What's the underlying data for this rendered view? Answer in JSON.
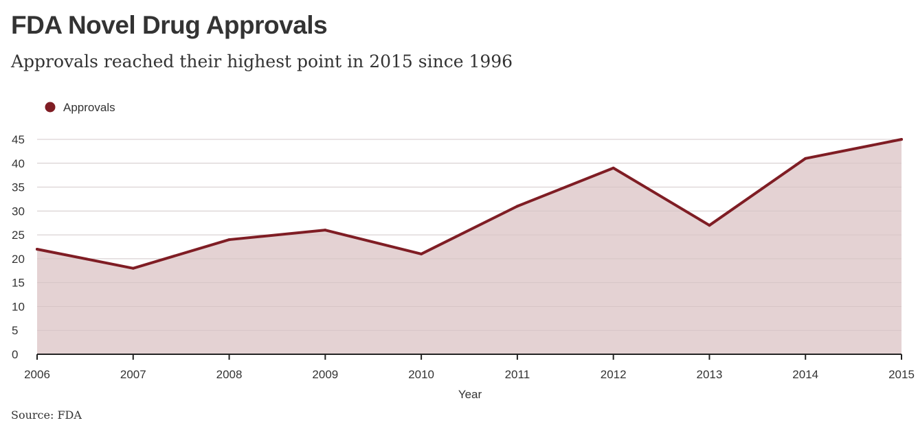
{
  "title": "FDA Novel Drug Approvals",
  "subtitle": "Approvals reached their highest point in 2015 since 1996",
  "source": "Source: FDA",
  "colors": {
    "line": "#7f1d24",
    "area": "#e4d2d3",
    "grid": "#dddddd",
    "axis": "#222222"
  },
  "chart_data": {
    "type": "area",
    "title": "FDA Novel Drug Approvals",
    "xlabel": "Year",
    "ylabel": "",
    "x": [
      "2006",
      "2007",
      "2008",
      "2009",
      "2010",
      "2011",
      "2012",
      "2013",
      "2014",
      "2015"
    ],
    "series": [
      {
        "name": "Approvals",
        "values": [
          22,
          18,
          24,
          26,
          21,
          31,
          39,
          27,
          41,
          45
        ]
      }
    ],
    "ylim": [
      0,
      45
    ],
    "yticks": [
      0,
      5,
      10,
      15,
      20,
      25,
      30,
      35,
      40,
      45
    ],
    "grid": true,
    "legend": "top-left"
  }
}
